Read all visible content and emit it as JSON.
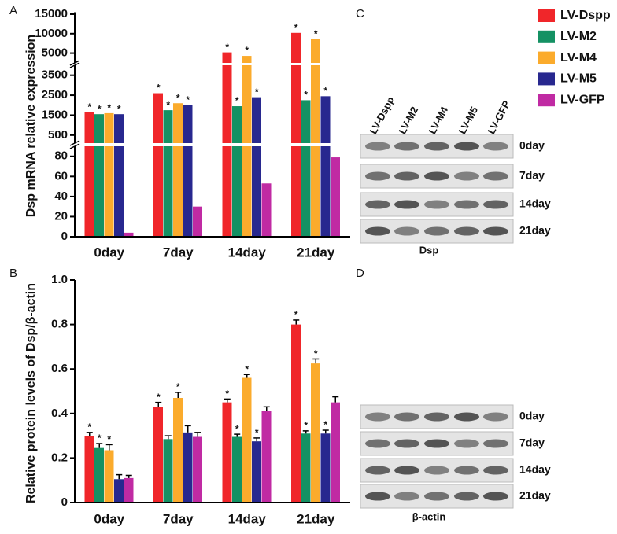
{
  "chart_data": [
    {
      "type": "bar",
      "panel_label": "A",
      "y_label": "Dsp mRNA relative expression",
      "categories": [
        "0day",
        "7day",
        "14day",
        "21day"
      ],
      "y_segments": [
        {
          "ylim": [
            0,
            90
          ],
          "yticks": [
            0,
            20,
            40,
            60,
            80
          ]
        },
        {
          "ylim": [
            100,
            4000
          ],
          "yticks": [
            500,
            1500,
            2500,
            3500
          ]
        },
        {
          "ylim": [
            2500,
            15500
          ],
          "yticks": [
            5000,
            10000,
            15000
          ]
        }
      ],
      "legend": "right",
      "series": [
        {
          "name": "LV-Dspp",
          "color": "#f0262a",
          "values": [
            1650,
            2600,
            5200,
            10200
          ],
          "annotations": [
            "*",
            "*",
            "*",
            "*"
          ]
        },
        {
          "name": "LV-M2",
          "color": "#149163",
          "values": [
            1550,
            1750,
            1950,
            2250
          ],
          "annotations": [
            "*",
            "*",
            "*",
            "*"
          ]
        },
        {
          "name": "LV-M4",
          "color": "#fbab2c",
          "values": [
            1600,
            2100,
            4300,
            8600
          ],
          "annotations": [
            "*",
            "*",
            "*",
            "*"
          ]
        },
        {
          "name": "LV-M5",
          "color": "#28288f",
          "values": [
            1550,
            2000,
            2400,
            2450
          ],
          "annotations": [
            "*",
            "*",
            "*",
            "*"
          ]
        },
        {
          "name": "LV-GFP",
          "color": "#c02aa3",
          "values": [
            4,
            30,
            53,
            79
          ]
        }
      ]
    },
    {
      "type": "bar",
      "panel_label": "B",
      "y_label": "Relative protein levels of Dsp/β-actin",
      "categories": [
        "0day",
        "7day",
        "14day",
        "21day"
      ],
      "ylim": [
        0,
        1
      ],
      "yticks": [
        0,
        0.2,
        0.4,
        0.6,
        0.8,
        {
          "value": 1,
          "label": "1.0"
        }
      ],
      "series": [
        {
          "name": "LV-Dspp",
          "color": "#f0262a",
          "values": [
            0.3,
            0.43,
            0.45,
            0.8
          ],
          "errors": [
            0.015,
            0.02,
            0.015,
            0.02
          ],
          "annotations": [
            "*",
            "*",
            "*",
            "*"
          ]
        },
        {
          "name": "LV-M2",
          "color": "#149163",
          "values": [
            0.245,
            0.285,
            0.295,
            0.31
          ],
          "errors": [
            0.02,
            0.015,
            0.012,
            0.012
          ],
          "annotations": [
            "*",
            null,
            "*",
            "*"
          ]
        },
        {
          "name": "LV-M4",
          "color": "#fbab2c",
          "values": [
            0.235,
            0.47,
            0.56,
            0.625
          ],
          "errors": [
            0.025,
            0.025,
            0.015,
            0.02
          ],
          "annotations": [
            "*",
            "*",
            "*",
            "*"
          ]
        },
        {
          "name": "LV-M5",
          "color": "#28288f",
          "values": [
            0.105,
            0.315,
            0.275,
            0.31
          ],
          "errors": [
            0.02,
            0.03,
            0.015,
            0.015
          ],
          "annotations": [
            null,
            null,
            "*",
            "*"
          ]
        },
        {
          "name": "LV-GFP",
          "color": "#c02aa3",
          "values": [
            0.11,
            0.295,
            0.41,
            0.45
          ],
          "errors": [
            0.012,
            0.02,
            0.02,
            0.025
          ]
        }
      ]
    }
  ],
  "blots": [
    {
      "label": "C",
      "lanes": [
        "LV-Dspp",
        "LV-M2",
        "LV-M4",
        "LV-M5",
        "LV-GFP"
      ],
      "rows": [
        "0day",
        "7day",
        "14day",
        "21day"
      ],
      "caption": "Dsp"
    },
    {
      "label": "D",
      "rows": [
        "0day",
        "7day",
        "14day",
        "21day"
      ],
      "caption": "β-actin"
    }
  ]
}
